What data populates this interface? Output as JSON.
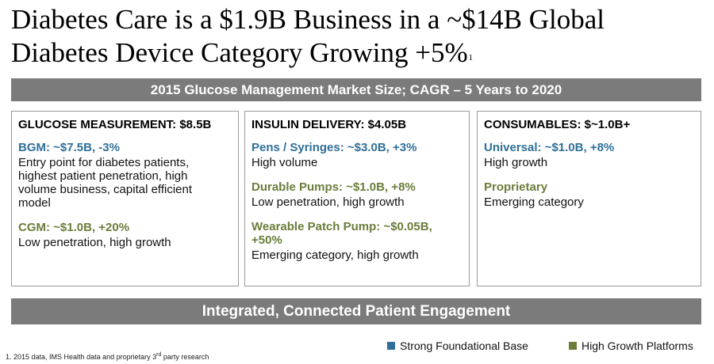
{
  "title": {
    "line1": "Diabetes Care is a $1.9B Business in a ~$14B Global",
    "line2": "Diabetes Device Category Growing +5%",
    "footnote_marker": "1"
  },
  "top_banner": "2015 Glucose Management Market Size; CAGR – 5 Years to 2020",
  "columns": [
    {
      "header": "GLUCOSE MEASUREMENT: $8.5B",
      "segments": [
        {
          "title": "BGM: ~$7.5B, -3%",
          "color": "blue",
          "desc": "Entry point for diabetes patients, highest patient penetration, high volume business, capital efficient model"
        },
        {
          "title": "CGM: ~$1.0B, +20%",
          "color": "green",
          "desc": "Low penetration, high growth"
        }
      ]
    },
    {
      "header": "INSULIN DELIVERY: $4.05B",
      "segments": [
        {
          "title": "Pens / Syringes: ~$3.0B, +3%",
          "color": "blue",
          "desc": "High volume"
        },
        {
          "title": "Durable Pumps: ~$1.0B, +8%",
          "color": "green",
          "desc": "Low penetration, high growth"
        },
        {
          "title": "Wearable Patch Pump: ~$0.05B, +50%",
          "color": "green",
          "desc": "Emerging category, high growth"
        }
      ]
    },
    {
      "header": "CONSUMABLES: $~1.0B+",
      "segments": [
        {
          "title": "Universal: ~$1.0B, +8%",
          "color": "blue",
          "desc": "High growth"
        },
        {
          "title": "Proprietary",
          "color": "green",
          "desc": "Emerging category"
        }
      ]
    }
  ],
  "bottom_banner": "Integrated, Connected Patient Engagement",
  "legend": [
    {
      "label": "Strong Foundational Base",
      "color": "#2f6f98"
    },
    {
      "label": "High Growth Platforms",
      "color": "#6a7d3a"
    }
  ],
  "footnote": {
    "pre": "1. 2015 data, IMS Health data and proprietary 3",
    "sup": "rd",
    "post": " party research"
  }
}
